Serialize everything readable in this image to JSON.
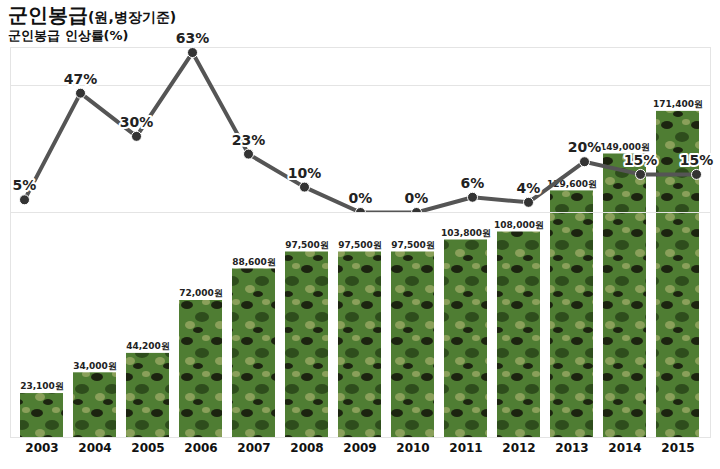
{
  "chart_data": {
    "type": "bar",
    "title": "군인봉급(원,병장기준)",
    "categories": [
      "2003",
      "2004",
      "2005",
      "2006",
      "2007",
      "2008",
      "2009",
      "2010",
      "2011",
      "2012",
      "2013",
      "2014",
      "2015"
    ],
    "values": [
      23100,
      34000,
      44200,
      72000,
      88600,
      97500,
      97500,
      97500,
      103800,
      108000,
      129600,
      149000,
      171400
    ],
    "value_labels": [
      "23,100원",
      "34,000원",
      "44,200원",
      "72,000원",
      "88,600원",
      "97,500원",
      "97,500원",
      "97,500원",
      "103,800원",
      "108,000원",
      "129,600원",
      "149,000원",
      "171,400원"
    ],
    "color": "#4f7d33",
    "ylim": [
      0,
      185000
    ],
    "yticks": [],
    "y2lim": [
      0,
      65
    ],
    "y2ticks": [],
    "data_labels": true,
    "tick_labels": "x",
    "series": [
      {
        "name": "군인봉급 인상률(%)",
        "type": "line",
        "axis": "y2",
        "values": [
          5,
          47,
          30,
          63,
          23,
          10,
          0,
          0,
          6,
          4,
          20,
          15,
          15
        ],
        "value_labels": [
          "5%",
          "47%",
          "30%",
          "63%",
          "23%",
          "10%",
          "0%",
          "0%",
          "6%",
          "4%",
          "20%",
          "15%",
          "15%"
        ],
        "color": "#555555",
        "marker": "circle"
      }
    ]
  }
}
